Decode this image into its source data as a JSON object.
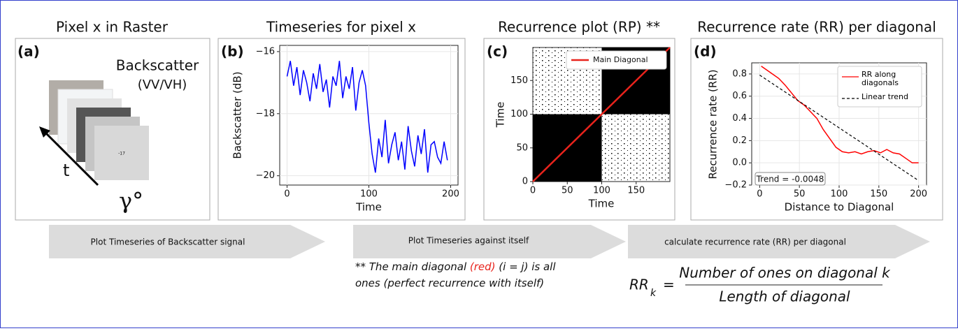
{
  "headers": [
    "Pixel x in Raster",
    "Timeseries for pixel x",
    "Recurrence plot (RP) **",
    "Recurrence rate (RR) per diagonal"
  ],
  "panel_labels": [
    "(a)",
    "(b)",
    "(c)",
    "(d)"
  ],
  "raster": {
    "label": "Backscatter",
    "sublabel": "(VV/VH)",
    "axis": "t",
    "angle": "γ°",
    "pixel_value": "-17"
  },
  "timeseries": {
    "type": "line",
    "y_label": "Backscatter (dB)",
    "x_label": "Time",
    "color": "#0000ff",
    "x": [
      0,
      4,
      8,
      12,
      16,
      20,
      24,
      28,
      32,
      36,
      40,
      44,
      48,
      52,
      56,
      60,
      64,
      68,
      72,
      76,
      80,
      84,
      88,
      92,
      96,
      100,
      104,
      108,
      112,
      116,
      120,
      124,
      128,
      132,
      136,
      140,
      144,
      148,
      152,
      156,
      160,
      164,
      168,
      172,
      176,
      180,
      184,
      188,
      192,
      196
    ],
    "values": [
      -16.8,
      -16.3,
      -17.1,
      -16.5,
      -17.4,
      -16.6,
      -17.0,
      -17.6,
      -16.7,
      -17.2,
      -16.4,
      -17.3,
      -16.9,
      -17.8,
      -16.8,
      -17.1,
      -16.3,
      -17.5,
      -16.8,
      -17.2,
      -16.5,
      -17.9,
      -17.0,
      -16.6,
      -17.1,
      -18.3,
      -19.3,
      -19.9,
      -18.8,
      -19.4,
      -18.2,
      -19.6,
      -19.0,
      -18.6,
      -19.5,
      -18.9,
      -19.8,
      -18.4,
      -19.2,
      -19.7,
      -18.7,
      -19.3,
      -18.5,
      -19.9,
      -19.0,
      -18.9,
      -19.4,
      -19.6,
      -18.9,
      -19.5
    ],
    "xlim": [
      -9,
      209
    ],
    "ylim": [
      -20.3,
      -15.8
    ],
    "xticks": [
      0,
      100,
      200
    ],
    "yticks": [
      {
        "value": -20,
        "label": "−20"
      },
      {
        "value": -18,
        "label": "−18"
      },
      {
        "value": -16,
        "label": "−16"
      }
    ],
    "grid": true
  },
  "recurrence": {
    "type": "recurrence",
    "y_label": "Time",
    "x_label": "Time",
    "xlim": [
      0,
      199
    ],
    "ylim": [
      0,
      199
    ],
    "xticks": [
      0,
      50,
      100,
      150
    ],
    "yticks": [
      0,
      50,
      100,
      150
    ],
    "blocks": [
      [
        0,
        100
      ],
      [
        100,
        199
      ]
    ],
    "series": [
      {
        "name": "Main Diagonal",
        "color": "#e8231c",
        "x": [
          0,
          199
        ],
        "values": [
          0,
          199
        ]
      }
    ]
  },
  "rr": {
    "type": "line",
    "y_label": "Recurrence rate (RR)",
    "x_label": "Distance to Diagonal",
    "xlim": [
      -10,
      210
    ],
    "ylim": [
      -0.2,
      0.9
    ],
    "xticks": [
      0,
      50,
      100,
      150,
      200
    ],
    "yticks": [
      {
        "value": -0.2,
        "label": "−0.2"
      },
      {
        "value": 0,
        "label": "0.0"
      },
      {
        "value": 0.2,
        "label": "0.2"
      },
      {
        "value": 0.4,
        "label": "0.4"
      },
      {
        "value": 0.6,
        "label": "0.6"
      },
      {
        "value": 0.8,
        "label": "0.8"
      }
    ],
    "grid": true,
    "series": [
      {
        "name": "RR along diagonals",
        "color": "#ff0000",
        "x": [
          2,
          8,
          16,
          24,
          32,
          40,
          48,
          56,
          64,
          72,
          80,
          88,
          96,
          104,
          112,
          120,
          128,
          136,
          144,
          152,
          160,
          168,
          176,
          184,
          192,
          200
        ],
        "values": [
          0.87,
          0.84,
          0.8,
          0.76,
          0.7,
          0.63,
          0.56,
          0.52,
          0.46,
          0.4,
          0.3,
          0.22,
          0.14,
          0.1,
          0.09,
          0.1,
          0.08,
          0.1,
          0.11,
          0.09,
          0.12,
          0.09,
          0.08,
          0.04,
          0.0,
          0.0
        ]
      },
      {
        "name": "Linear trend",
        "color": "#000000",
        "x": [
          0,
          200
        ],
        "values": [
          0.79,
          -0.16
        ]
      }
    ],
    "annotation": "Trend = -0.0048"
  },
  "steps": [
    "Plot Timeseries of Backscatter signal",
    "Plot Timeseries against itself",
    "calculate recurrence rate (RR) per diagonal"
  ],
  "note": {
    "parts": [
      "** The main diagonal ",
      "(red)",
      " (i = j) is all"
    ],
    "line2": "ones (perfect recurrence with itself)"
  },
  "formula": {
    "lhs": "RR",
    "subscript": "k",
    "equals": "=",
    "numerator": "Number of ones on diagonal k",
    "denominator": "Length of diagonal"
  }
}
